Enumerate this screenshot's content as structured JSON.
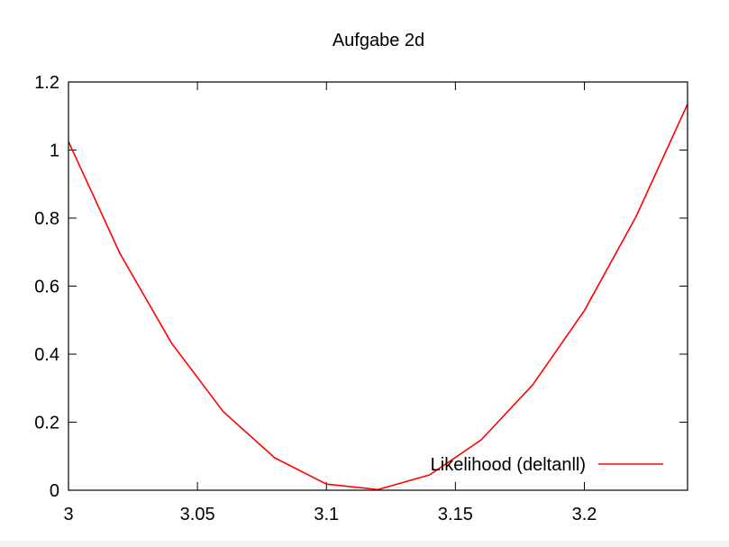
{
  "chart_data": {
    "type": "line",
    "title": "Aufgabe 2d",
    "xlabel": "",
    "ylabel": "",
    "xlim": [
      3,
      3.24
    ],
    "ylim": [
      0,
      1.2
    ],
    "x_ticks": [
      3,
      3.05,
      3.1,
      3.15,
      3.2
    ],
    "x_tick_labels": [
      "3",
      "3.05",
      "3.1",
      "3.15",
      "3.2"
    ],
    "y_ticks": [
      0,
      0.2,
      0.4,
      0.6,
      0.8,
      1,
      1.2
    ],
    "y_tick_labels": [
      "0",
      "0.2",
      "0.4",
      "0.6",
      "0.8",
      "1",
      "1.2"
    ],
    "grid": false,
    "legend_position": "bottom-right",
    "series": [
      {
        "name": "Likelihood (deltanll)",
        "color": "#ff0000",
        "x": [
          3.0,
          3.02,
          3.04,
          3.06,
          3.08,
          3.1,
          3.12,
          3.14,
          3.16,
          3.18,
          3.2,
          3.22,
          3.24
        ],
        "y": [
          1.025,
          0.695,
          0.432,
          0.231,
          0.095,
          0.018,
          0.002,
          0.045,
          0.148,
          0.31,
          0.528,
          0.804,
          1.135
        ]
      }
    ]
  }
}
